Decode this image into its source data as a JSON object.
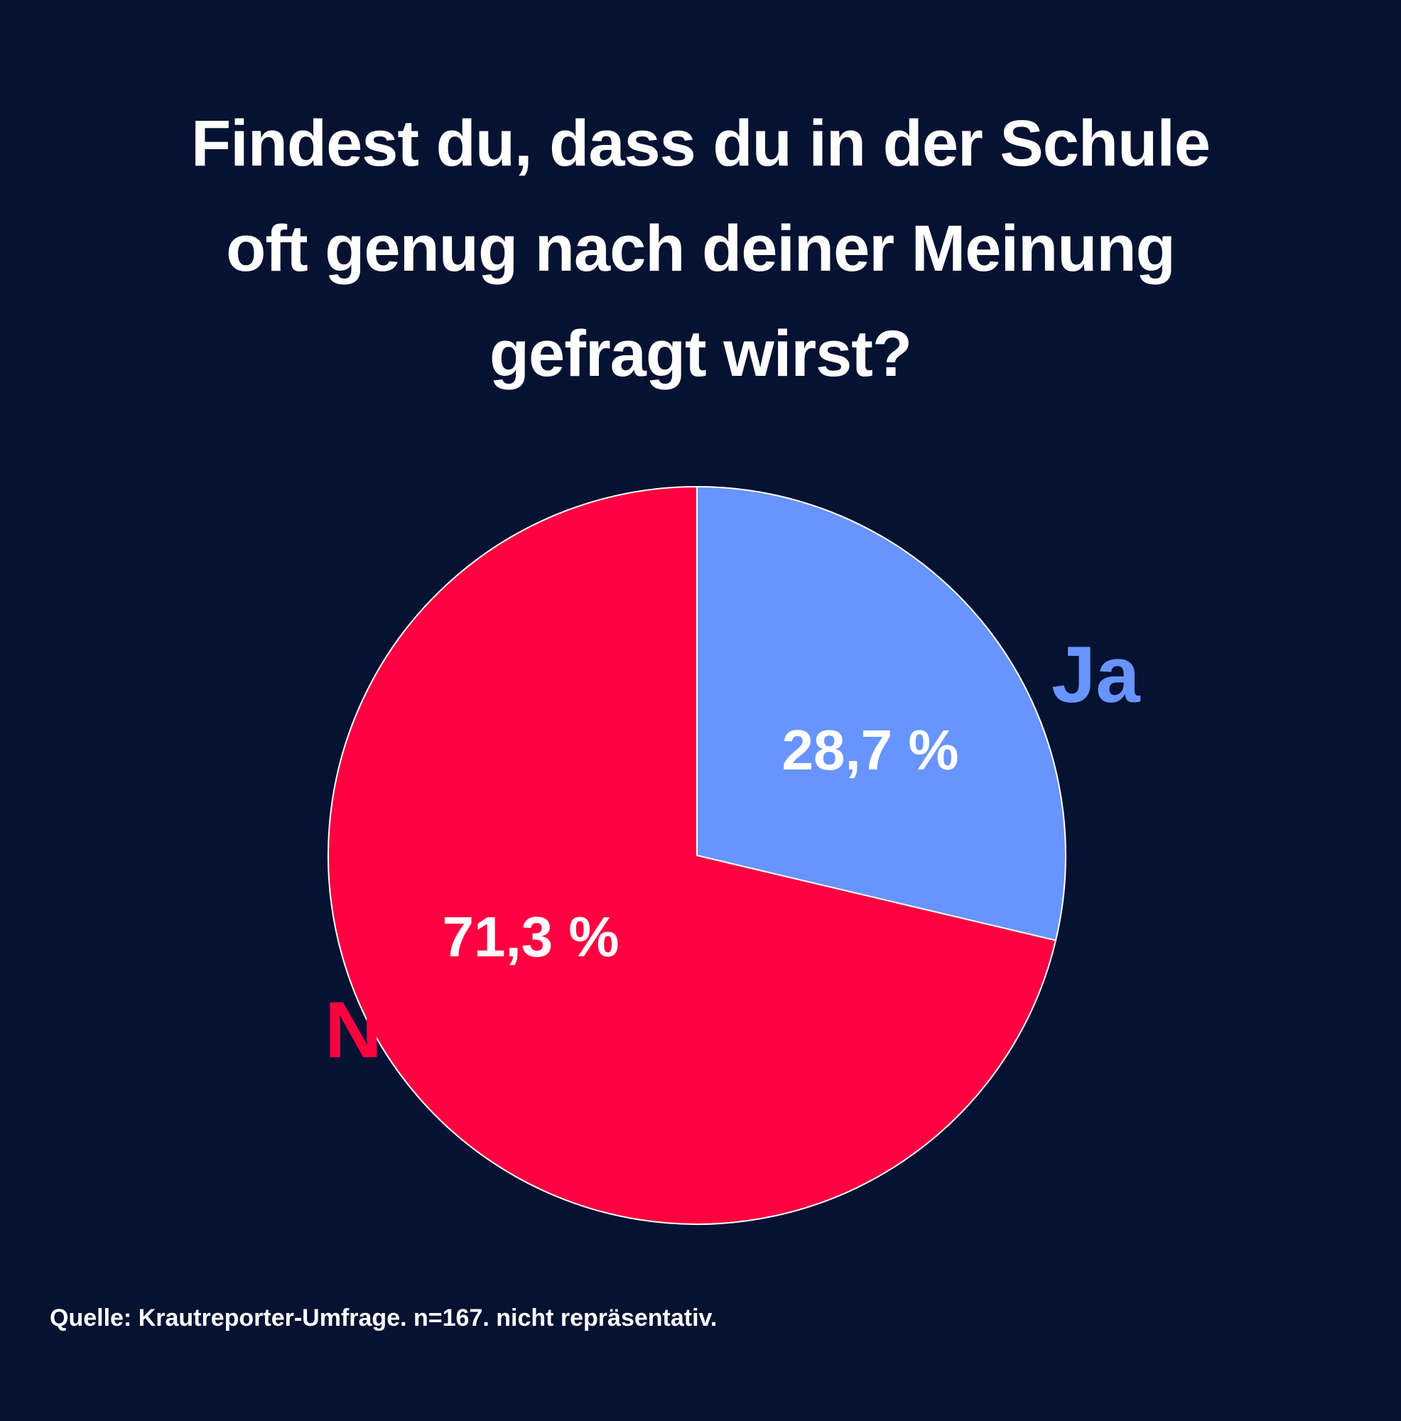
{
  "title_lines": [
    "Findest du, dass du in der Schule",
    "oft genug nach deiner Meinung",
    "gefragt wirst?"
  ],
  "source": "Quelle: Krautreporter-Umfrage. n=167. nicht repräsentativ.",
  "colors": {
    "background": "#061232",
    "ja": "#6894ff",
    "nein": "#ff0040",
    "pct_text": "#ffffff",
    "slice_border": "#ffffff"
  },
  "chart_data": {
    "type": "pie",
    "title": "Findest du, dass du in der Schule oft genug nach deiner Meinung gefragt wirst?",
    "slices": [
      {
        "label": "Ja",
        "value": 28.7,
        "display": "28,7 %",
        "color": "#6894ff"
      },
      {
        "label": "Nein",
        "value": 71.3,
        "display": "71,3 %",
        "color": "#ff0040"
      }
    ],
    "start": "12 o'clock",
    "direction": "clockwise",
    "legend": "labels next to slices"
  }
}
